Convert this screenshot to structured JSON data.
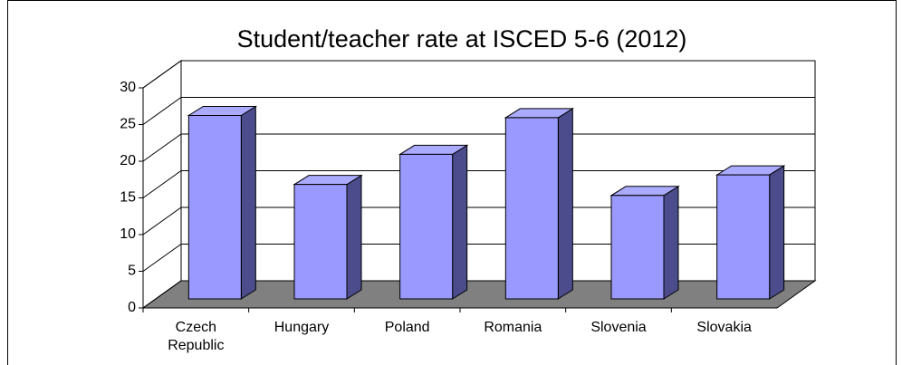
{
  "chart_data": {
    "type": "bar",
    "title": "Student/teacher rate at ISCED 5-6  (2012)",
    "categories": [
      "Czech Republic",
      "Hungary",
      "Poland",
      "Romania",
      "Slovenia",
      "Slovakia"
    ],
    "values": [
      25.0,
      15.6,
      19.7,
      24.7,
      14.1,
      16.9
    ],
    "color": "#9999ff",
    "ylim": [
      0,
      30
    ],
    "yticks": [
      0,
      5,
      10,
      15,
      20,
      25,
      30
    ],
    "grid": true
  }
}
